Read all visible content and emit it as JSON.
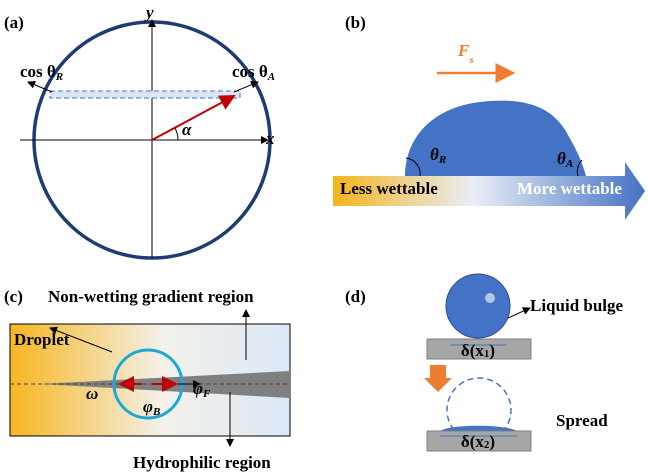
{
  "panel_a": {
    "label": "(a)",
    "y_axis": "y",
    "x_axis": "x",
    "cos_r": {
      "text": "cos θ",
      "sub": "R"
    },
    "cos_a": {
      "text": "cos θ",
      "sub": "A"
    },
    "angle": "α"
  },
  "panel_b": {
    "label": "(b)",
    "force": {
      "text": "F",
      "sub": "s"
    },
    "theta_r": {
      "text": "θ",
      "sub": "R"
    },
    "theta_a": {
      "text": "θ",
      "sub": "A"
    },
    "left": "Less wettable",
    "right": "More wettable"
  },
  "panel_c": {
    "label": "(c)",
    "title": "Non-wetting gradient region",
    "droplet": "Droplet",
    "omega": "ω",
    "phi_b": {
      "text": "φ",
      "sub": "B"
    },
    "phi_f": {
      "text": "φ",
      "sub": "F"
    },
    "bottom": "Hydrophilic region"
  },
  "panel_d": {
    "label": "(d)",
    "bulge": "Liquid bulge",
    "delta1": {
      "text": "δ(x",
      "sub": "1",
      "end": ")"
    },
    "spread": "Spread",
    "delta2": {
      "text": "δ(x",
      "sub": "2",
      "end": ")"
    }
  }
}
